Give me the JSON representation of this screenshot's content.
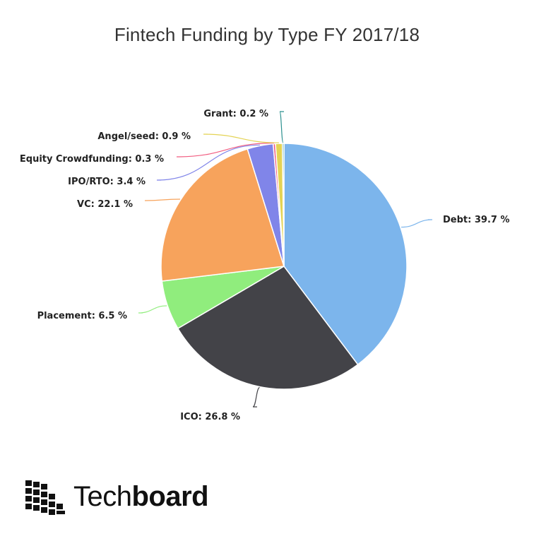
{
  "chart_data": {
    "type": "pie",
    "title": "Fintech Funding by Type FY 2017/18",
    "slices": [
      {
        "name": "Debt",
        "value": 39.7,
        "color": "#7cb5ec",
        "label": "Debt: 39.7 %"
      },
      {
        "name": "ICO",
        "value": 26.8,
        "color": "#434348",
        "label": "ICO: 26.8 %"
      },
      {
        "name": "Placement",
        "value": 6.5,
        "color": "#90ed7d",
        "label": "Placement: 6.5 %"
      },
      {
        "name": "VC",
        "value": 22.1,
        "color": "#f7a35c",
        "label": "VC: 22.1 %"
      },
      {
        "name": "IPO/RTO",
        "value": 3.4,
        "color": "#8085e9",
        "label": "IPO/RTO: 3.4 %"
      },
      {
        "name": "Equity Crowdfunding",
        "value": 0.3,
        "color": "#f15c80",
        "label": "Equity Crowdfunding: 0.3 %"
      },
      {
        "name": "Angel/seed",
        "value": 0.9,
        "color": "#e4d354",
        "label": "Angel/seed: 0.9 %"
      },
      {
        "name": "Grant",
        "value": 0.2,
        "color": "#2b908f",
        "label": "Grant: 0.2 %"
      }
    ]
  },
  "branding": {
    "logo_icon": "techboard-grid-logo",
    "name_part1": "Tech",
    "name_part2": "board"
  }
}
